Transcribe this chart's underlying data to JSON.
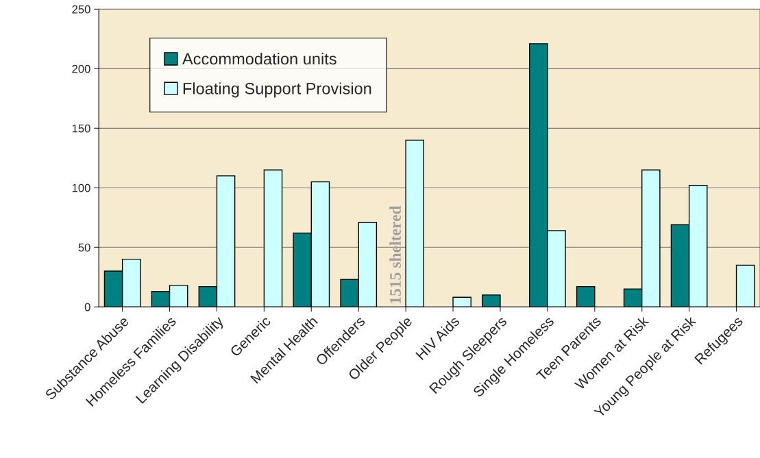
{
  "chart_data": {
    "type": "bar",
    "categories": [
      "Substance Abuse",
      "Homeless Families",
      "Learning Disability",
      "Generic",
      "Mental Health",
      "Offenders",
      "Older People",
      "HIV Aids",
      "Rough Sleepers",
      "Single Homeless",
      "Teen Parents",
      "Women at Risk",
      "Young People at Risk",
      "Refugees"
    ],
    "series": [
      {
        "name": "Accommodation units",
        "color": "#008080",
        "values": [
          30,
          13,
          17,
          null,
          62,
          23,
          null,
          null,
          10,
          221,
          17,
          15,
          69,
          null
        ]
      },
      {
        "name": "Floating Support Provision",
        "color": "#ccffff",
        "values": [
          40,
          18,
          110,
          115,
          105,
          71,
          140,
          8,
          null,
          64,
          null,
          115,
          102,
          35
        ]
      }
    ],
    "ylim": [
      0,
      250
    ],
    "yticks": [
      0,
      50,
      100,
      150,
      200,
      250
    ],
    "grid": "y",
    "legend": "top left",
    "annotations": [
      {
        "text": "1515 sheltered",
        "x": "Older People",
        "y": 0
      }
    ]
  }
}
